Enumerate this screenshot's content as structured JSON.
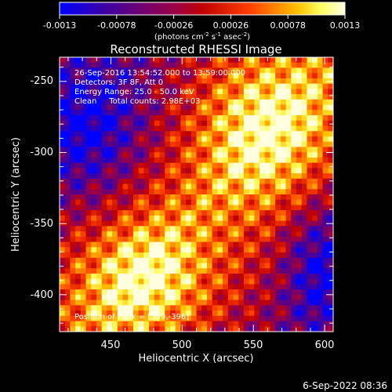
{
  "colorbar": {
    "ticks": [
      "-0.0013",
      "-0.00078",
      "-0.00026",
      "0.00026",
      "0.00078",
      "0.0013"
    ],
    "unit_pre": "(photons cm",
    "unit_exp1": "-2",
    "unit_mid": " s",
    "unit_exp2": "-1",
    "unit_mid2": " asec",
    "unit_exp3": "-2",
    "unit_post": ")",
    "palette": [
      "#0000ff",
      "#2000d0",
      "#4000a0",
      "#600080",
      "#800060",
      "#a00040",
      "#c00000",
      "#e02000",
      "#ff4000",
      "#ff8000",
      "#ffc000",
      "#ffff60",
      "#ffffe0"
    ]
  },
  "figure": {
    "title": "Reconstructed RHESSI Image",
    "annotation_line1": "26-Sep-2016 13:54:52.000 to 13:59:00.000",
    "annotation_line2": "Detectors: 3F 8F, Att 0",
    "annotation_line3": "Energy Range: 25.0 - 50.0 keV",
    "annotation_line4": "Clean     Total counts: 2.98E+03",
    "peak_label": "Position of Peak = [509,-396]",
    "timestamp": "6-Sep-2022 08:36"
  },
  "axes": {
    "xlabel": "Heliocentric X (arcsec)",
    "ylabel": "Heliocentric Y (arcsec)",
    "xticks": [
      "450",
      "500",
      "550",
      "600"
    ],
    "yticks": [
      "-250",
      "-300",
      "-350",
      "-400"
    ],
    "x_tick_values": [
      450,
      500,
      550,
      600
    ],
    "y_tick_values": [
      -250,
      -300,
      -350,
      -400
    ],
    "xlim": [
      414,
      606
    ],
    "ylim": [
      -426,
      -233
    ]
  }
}
